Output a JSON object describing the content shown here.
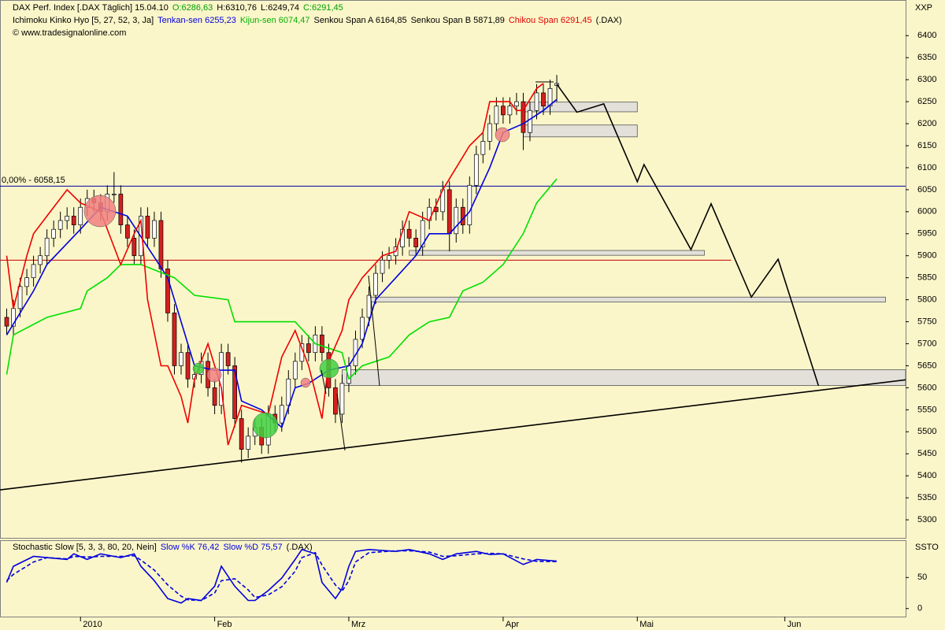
{
  "chart_data": {
    "type": "candlestick",
    "header": {
      "title": "DAX Perf. Index [.DAX  Täglich] 15.04.10",
      "ohlc": [
        {
          "text": "O:6286,63",
          "color": "#00a000"
        },
        {
          "text": "H:6310,76",
          "color": "#000000"
        },
        {
          "text": "L:6249,74",
          "color": "#000000"
        },
        {
          "text": "C:6291,45",
          "color": "#00a000"
        }
      ],
      "indicator": "Ichimoku Kinko Hyo [5, 27, 52, 3, Ja]",
      "legend": [
        {
          "text": "Tenkan-sen 6255,23",
          "color": "#0000e0"
        },
        {
          "text": "Kijun-sen 6074,47",
          "color": "#00b000"
        },
        {
          "text": "Senkou Span A 6164,85",
          "color": "#000000"
        },
        {
          "text": "Senkou Span B 5871,89",
          "color": "#000000"
        },
        {
          "text": "Chikou Span 6291,45",
          "color": "#e00000"
        },
        {
          "text": "(.DAX)",
          "color": "#000000"
        }
      ],
      "copyright": "© www.tradesignalonline.com",
      "symbol": "XXP"
    },
    "xlim": [
      -1,
      134
    ],
    "xticks": [
      {
        "value": 11,
        "label": "2010"
      },
      {
        "value": 31,
        "label": "Feb"
      },
      {
        "value": 51,
        "label": "Mrz"
      },
      {
        "value": 74,
        "label": "Apr"
      },
      {
        "value": 94,
        "label": "Mai"
      },
      {
        "value": 116,
        "label": "Jun"
      }
    ],
    "ylim": [
      5259,
      6481
    ],
    "yticks": [
      5300,
      5350,
      5400,
      5450,
      5500,
      5550,
      5600,
      5650,
      5700,
      5750,
      5800,
      5850,
      5900,
      5950,
      6000,
      6050,
      6100,
      6150,
      6200,
      6250,
      6300,
      6350,
      6400
    ],
    "up_color": "#ffffff",
    "down_color": "#d42020",
    "open": [
      5760,
      5740,
      5780,
      5830,
      5850,
      5880,
      5900,
      5940,
      5960,
      5980,
      5990,
      5970,
      6010,
      6030,
      6020,
      6000,
      6040,
      6040,
      5970,
      5940,
      5900,
      5990,
      5940,
      5980,
      5870,
      5770,
      5650,
      5680,
      5620,
      5630,
      5660,
      5600,
      5560,
      5680,
      5650,
      5530,
      5460,
      5490,
      5510,
      5470,
      5540,
      5520,
      5560,
      5620,
      5660,
      5700,
      5680,
      5720,
      5680,
      5600,
      5540,
      5610,
      5650,
      5710,
      5760,
      5810,
      5860,
      5890,
      5900,
      5920,
      5960,
      5940,
      5920,
      5980,
      6010,
      6000,
      6050,
      5950,
      6010,
      5970,
      6060,
      6130,
      6160,
      6200,
      6240,
      6220,
      6240,
      6250,
      6180,
      6230,
      6270,
      6240,
      6286.63
    ],
    "high": [
      5780,
      5800,
      5850,
      5870,
      5900,
      5920,
      5960,
      5980,
      6000,
      6010,
      6010,
      6030,
      6050,
      6050,
      6040,
      6060,
      6090,
      6060,
      5990,
      5960,
      6010,
      6010,
      6000,
      6000,
      5890,
      5790,
      5700,
      5700,
      5650,
      5680,
      5680,
      5620,
      5700,
      5700,
      5670,
      5550,
      5510,
      5530,
      5530,
      5560,
      5560,
      5580,
      5640,
      5680,
      5720,
      5720,
      5740,
      5740,
      5700,
      5620,
      5630,
      5670,
      5730,
      5780,
      5830,
      5880,
      5910,
      5920,
      5940,
      5980,
      5980,
      5960,
      6000,
      6030,
      6030,
      6070,
      6070,
      6030,
      6030,
      6080,
      6150,
      6180,
      6220,
      6260,
      6260,
      6260,
      6270,
      6270,
      6250,
      6290,
      6290,
      6300,
      6310.76
    ],
    "low": [
      5720,
      5720,
      5760,
      5810,
      5830,
      5860,
      5880,
      5920,
      5940,
      5960,
      5950,
      5950,
      5990,
      6000,
      5980,
      5980,
      6020,
      5950,
      5920,
      5880,
      5880,
      5920,
      5920,
      5850,
      5750,
      5630,
      5630,
      5600,
      5600,
      5610,
      5580,
      5540,
      5540,
      5630,
      5510,
      5430,
      5440,
      5470,
      5450,
      5450,
      5500,
      5500,
      5540,
      5600,
      5640,
      5660,
      5660,
      5660,
      5580,
      5520,
      5520,
      5590,
      5630,
      5690,
      5740,
      5790,
      5840,
      5870,
      5880,
      5900,
      5920,
      5900,
      5900,
      5960,
      5980,
      5980,
      5910,
      5930,
      5950,
      5950,
      6040,
      6110,
      6140,
      6180,
      6200,
      6200,
      6220,
      6140,
      6160,
      6210,
      6220,
      6220,
      6249.74
    ],
    "close": [
      5740,
      5780,
      5830,
      5850,
      5880,
      5900,
      5940,
      5960,
      5980,
      5990,
      5970,
      6010,
      6030,
      6020,
      6000,
      6040,
      6040,
      5970,
      5940,
      5900,
      5990,
      5940,
      5980,
      5870,
      5770,
      5650,
      5680,
      5620,
      5630,
      5660,
      5600,
      5560,
      5680,
      5650,
      5530,
      5460,
      5490,
      5510,
      5470,
      5540,
      5520,
      5560,
      5620,
      5660,
      5700,
      5680,
      5720,
      5680,
      5600,
      5540,
      5610,
      5650,
      5710,
      5760,
      5810,
      5860,
      5890,
      5900,
      5920,
      5960,
      5940,
      5920,
      5980,
      6010,
      6000,
      6050,
      5950,
      6010,
      5970,
      6060,
      6130,
      6160,
      6200,
      6240,
      6220,
      6240,
      6250,
      6180,
      6230,
      6270,
      6240,
      6280,
      6291.45
    ],
    "lines": [
      {
        "color": "#0000e0",
        "x": [
          0,
          4,
          6,
          11,
          14,
          18,
          21,
          24,
          26,
          28,
          31,
          34,
          35,
          38,
          41,
          43,
          45,
          48,
          51,
          53,
          55,
          58,
          61,
          63,
          66,
          69,
          72,
          74,
          77,
          80,
          82
        ],
        "values": [
          5720,
          5820,
          5880,
          5960,
          6010,
          5990,
          5920,
          5850,
          5750,
          5650,
          5640,
          5640,
          5570,
          5550,
          5510,
          5600,
          5610,
          5640,
          5650,
          5700,
          5800,
          5850,
          5900,
          5950,
          5950,
          6000,
          6100,
          6180,
          6200,
          6230,
          6255.23
        ]
      },
      {
        "color": "#00e000",
        "x": [
          0,
          1,
          6,
          11,
          12,
          15,
          17,
          20,
          25,
          28,
          33,
          34,
          43,
          46,
          50,
          51,
          53,
          57,
          60,
          63,
          66,
          68,
          71,
          74,
          77,
          79,
          82
        ],
        "values": [
          5630,
          5720,
          5760,
          5780,
          5820,
          5850,
          5880,
          5880,
          5850,
          5810,
          5800,
          5750,
          5750,
          5700,
          5680,
          5620,
          5650,
          5670,
          5720,
          5750,
          5760,
          5820,
          5840,
          5880,
          5950,
          6020,
          6074.47
        ]
      },
      {
        "color": "#ee0000",
        "x": [
          0,
          1,
          3,
          4,
          6,
          9,
          11,
          14,
          17,
          19,
          20,
          21,
          23,
          24,
          26,
          27,
          28,
          30,
          32,
          33,
          35,
          37,
          39,
          41,
          43,
          44,
          45,
          47,
          48,
          50,
          51,
          53,
          56,
          58,
          60,
          63,
          65,
          67,
          69,
          71,
          72,
          73,
          75,
          76,
          77,
          79,
          80
        ],
        "values": [
          5900,
          5780,
          5900,
          5950,
          5990,
          6050,
          6020,
          6000,
          5880,
          5950,
          5980,
          5800,
          5650,
          5650,
          5580,
          5520,
          5620,
          5700,
          5600,
          5470,
          5560,
          5550,
          5540,
          5670,
          5730,
          5690,
          5650,
          5530,
          5660,
          5730,
          5800,
          5850,
          5900,
          5910,
          6000,
          5980,
          6050,
          6100,
          6150,
          6180,
          6250,
          6250,
          6250,
          6230,
          6230,
          6280,
          6291.45
        ]
      },
      {
        "color": "#000000",
        "x": [
          82,
          85,
          89,
          94,
          95,
          102,
          105,
          111,
          115,
          121
        ],
        "values": [
          6290,
          6226,
          6245,
          6068,
          6107,
          5914,
          6018,
          5806,
          5892,
          5605
        ]
      },
      {
        "color": "#000000",
        "x": [
          -1,
          134
        ],
        "values": [
          5368,
          5618
        ]
      }
    ],
    "hlines": [
      {
        "value": 6058.15,
        "label": "0,00% - 6058,15",
        "color": "#0000a0",
        "x": [
          -1,
          134
        ]
      },
      {
        "value": 5890,
        "color": "#c00000",
        "x": [
          -1,
          108
        ]
      }
    ],
    "zones": [
      {
        "x": [
          77,
          94
        ],
        "low": 6227,
        "high": 6249
      },
      {
        "x": [
          77,
          94
        ],
        "low": 6170,
        "high": 6197
      },
      {
        "x": [
          60,
          104
        ],
        "low": 5901,
        "high": 5912
      },
      {
        "x": [
          54,
          131
        ],
        "low": 5795,
        "high": 5806
      },
      {
        "x": [
          50,
          134
        ],
        "low": 5605,
        "high": 5641
      }
    ],
    "zone_color": "#e2e0d8",
    "stochastic": {
      "title": "Stochastic Slow [5, 3, 3, 80, 20, Nein]",
      "legend": [
        {
          "text": "Slow %K 76,42",
          "color": "#0000e0"
        },
        {
          "text": "Slow %D 75,57",
          "color": "#0000e0"
        },
        {
          "text": "(.DAX)",
          "color": "#000000"
        }
      ],
      "symbol": "SSTO",
      "ylim": [
        -13,
        110
      ],
      "yticks": [
        0,
        50
      ],
      "series": [
        {
          "color": "#0000e0",
          "dashed": false,
          "x": [
            0,
            1,
            4,
            6,
            9,
            10,
            12,
            14,
            17,
            19,
            20,
            22,
            24,
            26,
            27,
            29,
            31,
            32,
            34,
            36,
            37,
            39,
            41,
            43,
            44,
            46,
            47,
            49,
            50,
            51,
            52,
            54,
            58,
            60,
            63,
            65,
            67,
            70,
            72,
            74,
            77,
            79,
            82
          ],
          "values": [
            42,
            68,
            84,
            82,
            79,
            88,
            79,
            88,
            82,
            88,
            68,
            45,
            16,
            9,
            16,
            13,
            36,
            68,
            36,
            13,
            13,
            29,
            49,
            79,
            95,
            88,
            42,
            16,
            32,
            68,
            92,
            95,
            92,
            95,
            88,
            79,
            88,
            92,
            87,
            88,
            71,
            79,
            76.42
          ]
        },
        {
          "color": "#0000e0",
          "dashed": true,
          "x": [
            0,
            1,
            4,
            6,
            9,
            10,
            12,
            14,
            17,
            19,
            20,
            22,
            24,
            26,
            27,
            29,
            31,
            32,
            34,
            36,
            37,
            39,
            41,
            43,
            44,
            46,
            47,
            49,
            50,
            51,
            52,
            54,
            58,
            60,
            63,
            65,
            67,
            70,
            72,
            74,
            77,
            79,
            82
          ],
          "values": [
            45,
            55,
            75,
            82,
            80,
            84,
            83,
            84,
            84,
            85,
            78,
            62,
            38,
            20,
            14,
            13,
            25,
            45,
            48,
            30,
            18,
            22,
            35,
            60,
            82,
            90,
            70,
            38,
            28,
            45,
            75,
            90,
            93,
            93,
            91,
            84,
            85,
            88,
            89,
            88,
            80,
            76,
            75.57
          ]
        }
      ]
    }
  }
}
